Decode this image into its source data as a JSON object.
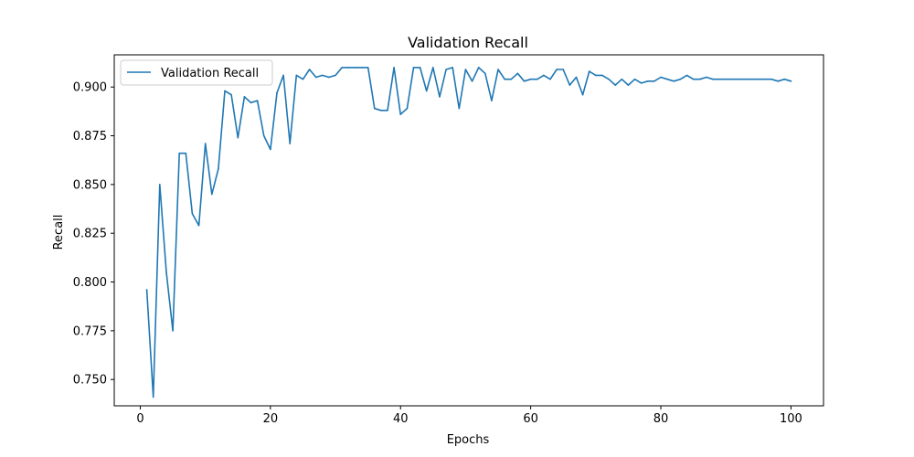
{
  "chart_data": {
    "type": "line",
    "title": "Validation Recall",
    "xlabel": "Epochs",
    "ylabel": "Recall",
    "xlim": [
      -4,
      105
    ],
    "ylim": [
      0.7365,
      0.9165
    ],
    "xticks": [
      0,
      20,
      40,
      60,
      80,
      100
    ],
    "yticks": [
      0.75,
      0.775,
      0.8,
      0.825,
      0.85,
      0.875,
      0.9
    ],
    "xtick_labels": [
      "0",
      "20",
      "40",
      "60",
      "80",
      "100"
    ],
    "ytick_labels": [
      "0.750",
      "0.775",
      "0.800",
      "0.825",
      "0.850",
      "0.875",
      "0.900"
    ],
    "grid": false,
    "legend": "upper-left",
    "x": [
      1,
      2,
      3,
      4,
      5,
      6,
      7,
      8,
      9,
      10,
      11,
      12,
      13,
      14,
      15,
      16,
      17,
      18,
      19,
      20,
      21,
      22,
      23,
      24,
      25,
      26,
      27,
      28,
      29,
      30,
      31,
      32,
      33,
      34,
      35,
      36,
      37,
      38,
      39,
      40,
      41,
      42,
      43,
      44,
      45,
      46,
      47,
      48,
      49,
      50,
      51,
      52,
      53,
      54,
      55,
      56,
      57,
      58,
      59,
      60,
      61,
      62,
      63,
      64,
      65,
      66,
      67,
      68,
      69,
      70,
      71,
      72,
      73,
      74,
      75,
      76,
      77,
      78,
      79,
      80,
      81,
      82,
      83,
      84,
      85,
      86,
      87,
      88,
      89,
      90,
      91,
      92,
      93,
      94,
      95,
      96,
      97,
      98,
      99,
      100
    ],
    "series": [
      {
        "name": "Validation Recall",
        "color": "#1f77b4",
        "values": [
          0.796,
          0.741,
          0.85,
          0.805,
          0.775,
          0.866,
          0.866,
          0.835,
          0.829,
          0.871,
          0.845,
          0.858,
          0.898,
          0.896,
          0.874,
          0.895,
          0.892,
          0.893,
          0.875,
          0.868,
          0.897,
          0.906,
          0.871,
          0.906,
          0.904,
          0.909,
          0.905,
          0.906,
          0.905,
          0.906,
          0.91,
          0.91,
          0.91,
          0.91,
          0.91,
          0.889,
          0.888,
          0.888,
          0.91,
          0.886,
          0.889,
          0.91,
          0.91,
          0.898,
          0.91,
          0.895,
          0.909,
          0.91,
          0.889,
          0.909,
          0.903,
          0.91,
          0.907,
          0.893,
          0.909,
          0.904,
          0.904,
          0.907,
          0.903,
          0.904,
          0.904,
          0.906,
          0.904,
          0.909,
          0.909,
          0.901,
          0.905,
          0.896,
          0.908,
          0.906,
          0.906,
          0.904,
          0.901,
          0.904,
          0.901,
          0.904,
          0.902,
          0.903,
          0.903,
          0.905,
          0.904,
          0.903,
          0.904,
          0.906,
          0.904,
          0.904,
          0.905,
          0.904,
          0.904,
          0.904,
          0.904,
          0.904,
          0.904,
          0.904,
          0.904,
          0.904,
          0.904,
          0.903,
          0.904,
          0.903
        ]
      }
    ]
  }
}
